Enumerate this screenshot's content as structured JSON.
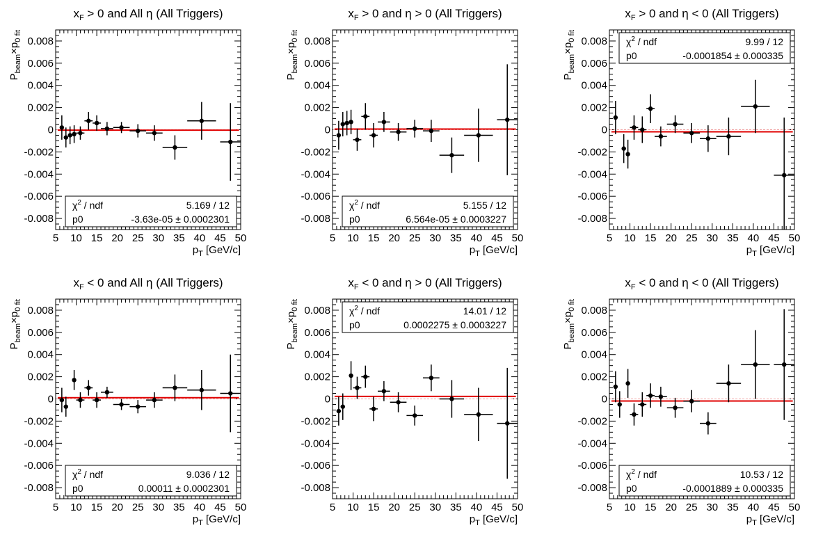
{
  "chart_data": [
    {
      "type": "scatter",
      "title_parts": {
        "a": "x",
        "b": "F",
        "c": " > 0 and All ",
        "d": "η",
        "e": " (All Triggers)"
      },
      "xlabel": {
        "main": "p",
        "sub": "T",
        "unit": " [GeV/c]"
      },
      "ylabel": {
        "p": "P",
        "beam": "beam",
        "x": "×p",
        "fit": "0 fit"
      },
      "xlim": [
        5,
        50
      ],
      "ylim": [
        -0.009,
        0.009
      ],
      "xticks": [
        "5",
        "10",
        "15",
        "20",
        "25",
        "30",
        "35",
        "40",
        "45",
        "50"
      ],
      "yticks": [
        "-0.008",
        "-0.006",
        "-0.004",
        "-0.002",
        "0",
        "0.002",
        "0.004",
        "0.006",
        "0.008"
      ],
      "fit_value": -3.63e-05,
      "stats_position": "bottom",
      "stats": {
        "chi_label": "χ",
        "chi_sup": "2",
        "chi_rest": " / ndf",
        "chi_value": "5.169 / 12",
        "p0_label": "p0",
        "p0_value": "-3.63e-05 ± 0.0002301"
      },
      "points": [
        {
          "x": 6.5,
          "y": 0.0002,
          "xerr": 0.5,
          "yerr": 0.0011
        },
        {
          "x": 7.5,
          "y": -0.0007,
          "xerr": 0.5,
          "yerr": 0.0009
        },
        {
          "x": 8.5,
          "y": -0.0005,
          "xerr": 0.5,
          "yerr": 0.0008
        },
        {
          "x": 9.5,
          "y": -0.0004,
          "xerr": 0.5,
          "yerr": 0.0008
        },
        {
          "x": 11,
          "y": -0.0003,
          "xerr": 1,
          "yerr": 0.0006
        },
        {
          "x": 13,
          "y": 0.0008,
          "xerr": 1,
          "yerr": 0.0008
        },
        {
          "x": 15,
          "y": 0.0006,
          "xerr": 1,
          "yerr": 0.0007
        },
        {
          "x": 17.5,
          "y": 0.0001,
          "xerr": 1.5,
          "yerr": 0.0006
        },
        {
          "x": 21,
          "y": 0.0002,
          "xerr": 2,
          "yerr": 0.0005
        },
        {
          "x": 25,
          "y": -0.0001,
          "xerr": 2,
          "yerr": 0.0006
        },
        {
          "x": 29,
          "y": -0.0003,
          "xerr": 2,
          "yerr": 0.0007
        },
        {
          "x": 34,
          "y": -0.0016,
          "xerr": 3,
          "yerr": 0.0011
        },
        {
          "x": 40.5,
          "y": 0.0008,
          "xerr": 3.5,
          "yerr": 0.0017
        },
        {
          "x": 47.5,
          "y": -0.0011,
          "xerr": 2.5,
          "yerr": 0.0035
        }
      ]
    },
    {
      "type": "scatter",
      "title_parts": {
        "a": "x",
        "b": "F",
        "c": " > 0 and ",
        "d": "η",
        "e": " > 0 (All Triggers)"
      },
      "xlabel": {
        "main": "p",
        "sub": "T",
        "unit": " [GeV/c]"
      },
      "ylabel": {
        "p": "P",
        "beam": "beam",
        "x": "×p",
        "fit": "0 fit"
      },
      "xlim": [
        5,
        50
      ],
      "ylim": [
        -0.009,
        0.009
      ],
      "xticks": [
        "5",
        "10",
        "15",
        "20",
        "25",
        "30",
        "35",
        "40",
        "45",
        "50"
      ],
      "yticks": [
        "-0.008",
        "-0.006",
        "-0.004",
        "-0.002",
        "0",
        "0.002",
        "0.004",
        "0.006",
        "0.008"
      ],
      "fit_value": 6.564e-05,
      "stats_position": "bottom",
      "stats": {
        "chi_label": "χ",
        "chi_sup": "2",
        "chi_rest": " / ndf",
        "chi_value": "5.155 / 12",
        "p0_label": "p0",
        "p0_value": "6.564e-05 ± 0.0003227"
      },
      "points": [
        {
          "x": 6.5,
          "y": -0.0005,
          "xerr": 0.5,
          "yerr": 0.0013
        },
        {
          "x": 7.5,
          "y": 0.0005,
          "xerr": 0.5,
          "yerr": 0.0011
        },
        {
          "x": 8.5,
          "y": 0.0006,
          "xerr": 0.5,
          "yerr": 0.0011
        },
        {
          "x": 9.5,
          "y": 0.0007,
          "xerr": 0.5,
          "yerr": 0.0011
        },
        {
          "x": 11,
          "y": -0.0009,
          "xerr": 1,
          "yerr": 0.001
        },
        {
          "x": 13,
          "y": 0.0012,
          "xerr": 1,
          "yerr": 0.0012
        },
        {
          "x": 15,
          "y": -0.0005,
          "xerr": 1,
          "yerr": 0.0011
        },
        {
          "x": 17.5,
          "y": 0.0007,
          "xerr": 1.5,
          "yerr": 0.0009
        },
        {
          "x": 21,
          "y": -0.0002,
          "xerr": 2,
          "yerr": 0.0008
        },
        {
          "x": 25,
          "y": 0.0001,
          "xerr": 2,
          "yerr": 0.0008
        },
        {
          "x": 29,
          "y": -0.0001,
          "xerr": 2,
          "yerr": 0.001
        },
        {
          "x": 34,
          "y": -0.0023,
          "xerr": 3,
          "yerr": 0.0016
        },
        {
          "x": 40.5,
          "y": -0.0005,
          "xerr": 3.5,
          "yerr": 0.0024
        },
        {
          "x": 47.5,
          "y": 0.0009,
          "xerr": 2.5,
          "yerr": 0.005
        }
      ]
    },
    {
      "type": "scatter",
      "title_parts": {
        "a": "x",
        "b": "F",
        "c": " > 0 and ",
        "d": "η",
        "e": " < 0 (All Triggers)"
      },
      "xlabel": {
        "main": "p",
        "sub": "T",
        "unit": " [GeV/c]"
      },
      "ylabel": {
        "p": "P",
        "beam": "beam",
        "x": "×p",
        "fit": "0 fit"
      },
      "xlim": [
        5,
        50
      ],
      "ylim": [
        -0.009,
        0.009
      ],
      "xticks": [
        "5",
        "10",
        "15",
        "20",
        "25",
        "30",
        "35",
        "40",
        "45",
        "50"
      ],
      "yticks": [
        "-0.008",
        "-0.006",
        "-0.004",
        "-0.002",
        "0",
        "0.002",
        "0.004",
        "0.006",
        "0.008"
      ],
      "fit_value": -0.0001854,
      "stats_position": "top",
      "stats": {
        "chi_label": "χ",
        "chi_sup": "2",
        "chi_rest": " / ndf",
        "chi_value": "9.99 / 12",
        "p0_label": "p0",
        "p0_value": "-0.0001854 ± 0.000335"
      },
      "points": [
        {
          "x": 6.5,
          "y": 0.0011,
          "xerr": 0.5,
          "yerr": 0.0015
        },
        {
          "x": 8.5,
          "y": -0.0017,
          "xerr": 0.5,
          "yerr": 0.0013
        },
        {
          "x": 9.5,
          "y": -0.0022,
          "xerr": 0.5,
          "yerr": 0.0013
        },
        {
          "x": 11,
          "y": 0.0002,
          "xerr": 1,
          "yerr": 0.0011
        },
        {
          "x": 13,
          "y": 0.0,
          "xerr": 1,
          "yerr": 0.0012
        },
        {
          "x": 15,
          "y": 0.0019,
          "xerr": 1,
          "yerr": 0.0013
        },
        {
          "x": 17.5,
          "y": -0.0006,
          "xerr": 1.5,
          "yerr": 0.0009
        },
        {
          "x": 21,
          "y": 0.0005,
          "xerr": 2,
          "yerr": 0.0008
        },
        {
          "x": 25,
          "y": -0.0003,
          "xerr": 2,
          "yerr": 0.0009
        },
        {
          "x": 29,
          "y": -0.0008,
          "xerr": 2,
          "yerr": 0.0012
        },
        {
          "x": 34,
          "y": -0.0006,
          "xerr": 3,
          "yerr": 0.0017
        },
        {
          "x": 40.5,
          "y": 0.0021,
          "xerr": 3.5,
          "yerr": 0.0024
        },
        {
          "x": 47.5,
          "y": -0.0041,
          "xerr": 2.5,
          "yerr": 0.0052
        }
      ]
    },
    {
      "type": "scatter",
      "title_parts": {
        "a": "x",
        "b": "F",
        "c": " < 0 and All ",
        "d": "η",
        "e": " (All Triggers)"
      },
      "xlabel": {
        "main": "p",
        "sub": "T",
        "unit": " [GeV/c]"
      },
      "ylabel": {
        "p": "P",
        "beam": "beam",
        "x": "×p",
        "fit": "0 fit"
      },
      "xlim": [
        5,
        50
      ],
      "ylim": [
        -0.009,
        0.009
      ],
      "xticks": [
        "5",
        "10",
        "15",
        "20",
        "25",
        "30",
        "35",
        "40",
        "45",
        "50"
      ],
      "yticks": [
        "-0.008",
        "-0.006",
        "-0.004",
        "-0.002",
        "0",
        "0.002",
        "0.004",
        "0.006",
        "0.008"
      ],
      "fit_value": 0.00011,
      "stats_position": "bottom",
      "stats": {
        "chi_label": "χ",
        "chi_sup": "2",
        "chi_rest": " / ndf",
        "chi_value": "9.036 / 12",
        "p0_label": "p0",
        "p0_value": "0.00011 ± 0.0002301"
      },
      "points": [
        {
          "x": 6.5,
          "y": -0.0001,
          "xerr": 0.5,
          "yerr": 0.0011
        },
        {
          "x": 7.5,
          "y": -0.0007,
          "xerr": 0.5,
          "yerr": 0.0009
        },
        {
          "x": 9.5,
          "y": 0.0017,
          "xerr": 0.5,
          "yerr": 0.0009
        },
        {
          "x": 11,
          "y": -0.0001,
          "xerr": 1,
          "yerr": 0.0007
        },
        {
          "x": 13,
          "y": 0.001,
          "xerr": 1,
          "yerr": 0.0007
        },
        {
          "x": 15,
          "y": -0.0001,
          "xerr": 1,
          "yerr": 0.0007
        },
        {
          "x": 17.5,
          "y": 0.0006,
          "xerr": 1.5,
          "yerr": 0.0005
        },
        {
          "x": 21,
          "y": -0.0005,
          "xerr": 2,
          "yerr": 0.0005
        },
        {
          "x": 25,
          "y": -0.0007,
          "xerr": 2,
          "yerr": 0.0006
        },
        {
          "x": 29,
          "y": -0.0001,
          "xerr": 2,
          "yerr": 0.0007
        },
        {
          "x": 34,
          "y": 0.001,
          "xerr": 3,
          "yerr": 0.0012
        },
        {
          "x": 40.5,
          "y": 0.0008,
          "xerr": 3.5,
          "yerr": 0.0018
        },
        {
          "x": 47.5,
          "y": 0.0005,
          "xerr": 2.5,
          "yerr": 0.0035
        }
      ]
    },
    {
      "type": "scatter",
      "title_parts": {
        "a": "x",
        "b": "F",
        "c": " < 0 and ",
        "d": "η",
        "e": " > 0 (All Triggers)"
      },
      "xlabel": {
        "main": "p",
        "sub": "T",
        "unit": " [GeV/c]"
      },
      "ylabel": {
        "p": "P",
        "beam": "beam",
        "x": "×p",
        "fit": "0 fit"
      },
      "xlim": [
        5,
        50
      ],
      "ylim": [
        -0.009,
        0.009
      ],
      "xticks": [
        "5",
        "10",
        "15",
        "20",
        "25",
        "30",
        "35",
        "40",
        "45",
        "50"
      ],
      "yticks": [
        "-0.008",
        "-0.006",
        "-0.004",
        "-0.002",
        "0",
        "0.002",
        "0.004",
        "0.006",
        "0.008"
      ],
      "fit_value": 0.0002275,
      "stats_position": "top",
      "stats": {
        "chi_label": "χ",
        "chi_sup": "2",
        "chi_rest": " / ndf",
        "chi_value": "14.01 / 12",
        "p0_label": "p0",
        "p0_value": "0.0002275 ± 0.0003227"
      },
      "points": [
        {
          "x": 6.5,
          "y": -0.0011,
          "xerr": 0.5,
          "yerr": 0.0013
        },
        {
          "x": 7.5,
          "y": -0.0007,
          "xerr": 0.5,
          "yerr": 0.0012
        },
        {
          "x": 9.5,
          "y": 0.0021,
          "xerr": 0.5,
          "yerr": 0.0013
        },
        {
          "x": 11,
          "y": 0.001,
          "xerr": 1,
          "yerr": 0.001
        },
        {
          "x": 13,
          "y": 0.002,
          "xerr": 1,
          "yerr": 0.001
        },
        {
          "x": 15,
          "y": -0.0009,
          "xerr": 1,
          "yerr": 0.0011
        },
        {
          "x": 17.5,
          "y": 0.0007,
          "xerr": 1.5,
          "yerr": 0.0009
        },
        {
          "x": 21,
          "y": -0.0003,
          "xerr": 2,
          "yerr": 0.0009
        },
        {
          "x": 25,
          "y": -0.0015,
          "xerr": 2,
          "yerr": 0.0009
        },
        {
          "x": 29,
          "y": 0.0019,
          "xerr": 2,
          "yerr": 0.0012
        },
        {
          "x": 34,
          "y": 0.0,
          "xerr": 3,
          "yerr": 0.0017
        },
        {
          "x": 40.5,
          "y": -0.0014,
          "xerr": 3.5,
          "yerr": 0.0024
        },
        {
          "x": 47.5,
          "y": -0.0022,
          "xerr": 2.5,
          "yerr": 0.005
        }
      ]
    },
    {
      "type": "scatter",
      "title_parts": {
        "a": "x",
        "b": "F",
        "c": " < 0 and ",
        "d": "η",
        "e": " < 0 (All Triggers)"
      },
      "xlabel": {
        "main": "p",
        "sub": "T",
        "unit": " [GeV/c]"
      },
      "ylabel": {
        "p": "P",
        "beam": "beam",
        "x": "×p",
        "fit": "0 fit"
      },
      "xlim": [
        5,
        50
      ],
      "ylim": [
        -0.009,
        0.009
      ],
      "xticks": [
        "5",
        "10",
        "15",
        "20",
        "25",
        "30",
        "35",
        "40",
        "45",
        "50"
      ],
      "yticks": [
        "-0.008",
        "-0.006",
        "-0.004",
        "-0.002",
        "0",
        "0.002",
        "0.004",
        "0.006",
        "0.008"
      ],
      "fit_value": -0.0001889,
      "stats_position": "bottom",
      "stats": {
        "chi_label": "χ",
        "chi_sup": "2",
        "chi_rest": " / ndf",
        "chi_value": "10.53 / 12",
        "p0_label": "p0",
        "p0_value": "-0.0001889 ± 0.000335"
      },
      "points": [
        {
          "x": 6.5,
          "y": 0.0011,
          "xerr": 0.5,
          "yerr": 0.0014
        },
        {
          "x": 7.5,
          "y": -0.0005,
          "xerr": 0.5,
          "yerr": 0.0012
        },
        {
          "x": 9.5,
          "y": 0.0014,
          "xerr": 0.5,
          "yerr": 0.0013
        },
        {
          "x": 11,
          "y": -0.0014,
          "xerr": 1,
          "yerr": 0.001
        },
        {
          "x": 13,
          "y": -0.0005,
          "xerr": 1,
          "yerr": 0.0011
        },
        {
          "x": 15,
          "y": 0.0003,
          "xerr": 1,
          "yerr": 0.0011
        },
        {
          "x": 17.5,
          "y": 0.0002,
          "xerr": 1.5,
          "yerr": 0.0009
        },
        {
          "x": 21,
          "y": -0.0008,
          "xerr": 2,
          "yerr": 0.0009
        },
        {
          "x": 25,
          "y": -0.0002,
          "xerr": 2,
          "yerr": 0.001
        },
        {
          "x": 29,
          "y": -0.0022,
          "xerr": 2,
          "yerr": 0.001
        },
        {
          "x": 34,
          "y": 0.0014,
          "xerr": 3,
          "yerr": 0.0017
        },
        {
          "x": 40.5,
          "y": 0.0031,
          "xerr": 3.5,
          "yerr": 0.0031
        },
        {
          "x": 47.5,
          "y": 0.0031,
          "xerr": 2.5,
          "yerr": 0.005
        }
      ]
    }
  ],
  "colors": {
    "fit_line": "#e00000",
    "zero_line": "#f0a0a0",
    "markers": "#000000",
    "frame": "#000000"
  }
}
